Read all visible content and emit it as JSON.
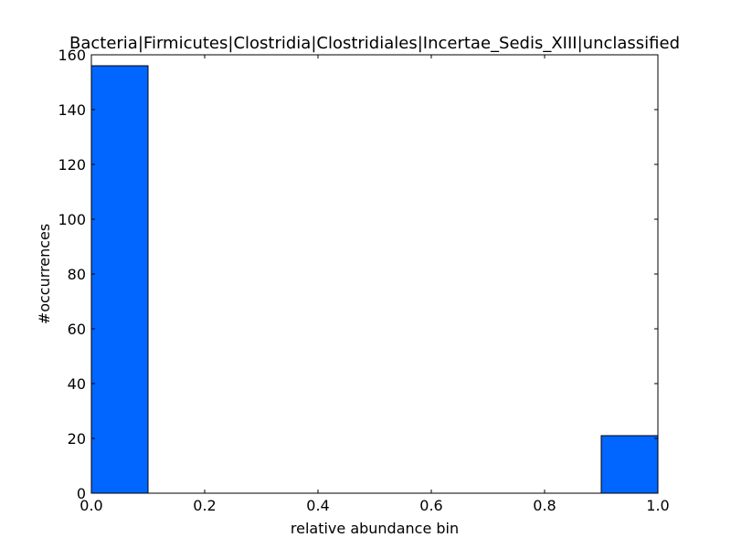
{
  "chart_data": {
    "type": "bar",
    "title": "Bacteria|Firmicutes|Clostridia|Clostridiales|Incertae_Sedis_XIII|unclassified",
    "xlabel": "relative abundance bin",
    "ylabel": "#occurrences",
    "xlim": [
      0.0,
      1.0
    ],
    "ylim": [
      0,
      160
    ],
    "xticks": [
      "0.0",
      "0.2",
      "0.4",
      "0.6",
      "0.8",
      "1.0"
    ],
    "yticks": [
      "0",
      "20",
      "40",
      "60",
      "80",
      "100",
      "120",
      "140",
      "160"
    ],
    "bins": [
      {
        "x0": 0.0,
        "x1": 0.1,
        "value": 156
      },
      {
        "x0": 0.1,
        "x1": 0.2,
        "value": 0
      },
      {
        "x0": 0.2,
        "x1": 0.3,
        "value": 0
      },
      {
        "x0": 0.3,
        "x1": 0.4,
        "value": 0
      },
      {
        "x0": 0.4,
        "x1": 0.5,
        "value": 0
      },
      {
        "x0": 0.5,
        "x1": 0.6,
        "value": 0
      },
      {
        "x0": 0.6,
        "x1": 0.7,
        "value": 0
      },
      {
        "x0": 0.7,
        "x1": 0.8,
        "value": 0
      },
      {
        "x0": 0.8,
        "x1": 0.9,
        "value": 0
      },
      {
        "x0": 0.9,
        "x1": 1.0,
        "value": 21
      }
    ],
    "bar_color": "#0066ff",
    "edge_color": "#000000",
    "grid": false,
    "legend": "none"
  }
}
